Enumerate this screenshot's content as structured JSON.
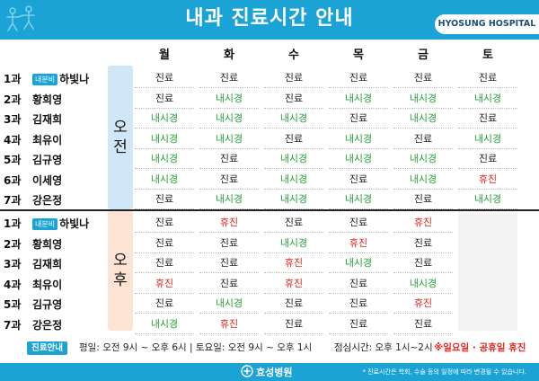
{
  "header": {
    "title": "내과 진료시간 안내",
    "hospital_name": "HYOSUNG HOSPITAL"
  },
  "days": [
    "월",
    "화",
    "수",
    "목",
    "금",
    "토"
  ],
  "sessions": {
    "am": [
      "오",
      "전"
    ],
    "pm": [
      "오",
      "후"
    ]
  },
  "am_rows": [
    {
      "clinic": "1과",
      "badge": "내분비",
      "doctor": "하빛나",
      "cells": [
        "진료",
        "진료",
        "진료",
        "진료",
        "진료",
        "진료"
      ]
    },
    {
      "clinic": "2과",
      "badge": "",
      "doctor": "황희영",
      "cells": [
        "진료",
        "내시경",
        "진료",
        "내시경",
        "내시경",
        "내시경"
      ]
    },
    {
      "clinic": "3과",
      "badge": "",
      "doctor": "김재희",
      "cells": [
        "내시경",
        "내시경",
        "내시경",
        "진료",
        "내시경",
        "진료"
      ]
    },
    {
      "clinic": "4과",
      "badge": "",
      "doctor": "최유이",
      "cells": [
        "내시경",
        "내시경",
        "진료",
        "내시경",
        "진료",
        "내시경"
      ]
    },
    {
      "clinic": "5과",
      "badge": "",
      "doctor": "김규영",
      "cells": [
        "내시경",
        "진료",
        "내시경",
        "내시경",
        "내시경",
        "진료"
      ]
    },
    {
      "clinic": "6과",
      "badge": "",
      "doctor": "이세영",
      "cells": [
        "내시경",
        "진료",
        "내시경",
        "진료",
        "내시경",
        "휴진"
      ]
    },
    {
      "clinic": "7과",
      "badge": "",
      "doctor": "강은정",
      "cells": [
        "진료",
        "내시경",
        "내시경",
        "내시경",
        "진료",
        "내시경"
      ]
    }
  ],
  "pm_rows": [
    {
      "clinic": "1과",
      "badge": "내분비",
      "doctor": "하빛나",
      "cells": [
        "진료",
        "휴진",
        "진료",
        "진료",
        "휴진"
      ]
    },
    {
      "clinic": "2과",
      "badge": "",
      "doctor": "황희영",
      "cells": [
        "진료",
        "진료",
        "내시경",
        "휴진",
        "진료"
      ]
    },
    {
      "clinic": "3과",
      "badge": "",
      "doctor": "김재희",
      "cells": [
        "진료",
        "진료",
        "휴진",
        "내시경",
        "진료"
      ]
    },
    {
      "clinic": "4과",
      "badge": "",
      "doctor": "최유이",
      "cells": [
        "휴진",
        "진료",
        "휴진",
        "진료",
        "내시경"
      ]
    },
    {
      "clinic": "5과",
      "badge": "",
      "doctor": "김규영",
      "cells": [
        "진료",
        "내시경",
        "진료",
        "진료",
        "휴진"
      ]
    },
    {
      "clinic": "7과",
      "badge": "",
      "doctor": "강은정",
      "cells": [
        "내시경",
        "휴진",
        "진료",
        "진료",
        "진료"
      ]
    }
  ],
  "status_colors": {
    "진료": "#222222",
    "내시경": "#27a33a",
    "휴진": "#e2251f"
  },
  "footer": {
    "info_label": "진료안내",
    "hours": "평일: 오전 9시 ~ 오후 6시  |  토요일: 오전 9시 ~ 오후 1시",
    "lunch": "점심시간: 오후 1시~2시",
    "holiday": "※일요일 · 공휴일 휴진"
  },
  "bottom": {
    "logo_text": "효성병원",
    "logo_icon": "hospital-logo-icon",
    "note": "* 진료시간은 학회, 수술 등의 일정에 따라 변경될 수 있습니다."
  },
  "accent_color": "#1ba3d6"
}
